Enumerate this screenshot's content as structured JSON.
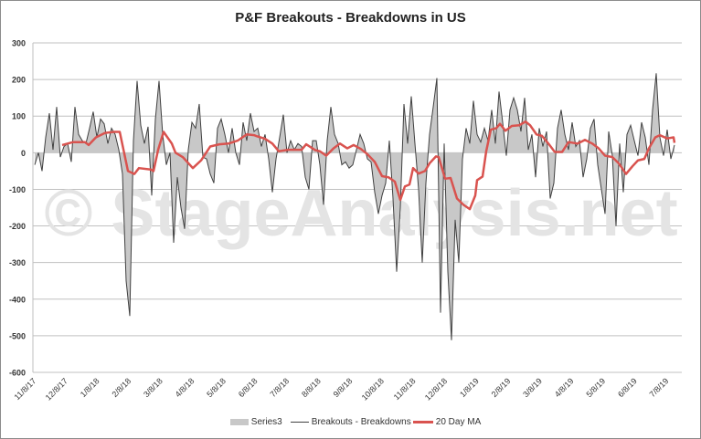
{
  "chart_data": {
    "type": "area",
    "title": "P&F Breakouts - Breakdowns in US",
    "watermark": "© StageAnalysis.net",
    "xlabel": "",
    "ylabel": "",
    "ylim": [
      -600,
      300
    ],
    "yticks": [
      300,
      200,
      100,
      0,
      -100,
      -200,
      -300,
      -400,
      -500,
      -600
    ],
    "y_tick_labels": [
      "300",
      "200",
      "100",
      "0",
      "-100",
      "-200",
      "-300",
      "-400",
      "-500",
      "-600"
    ],
    "x_tick_labels": [
      "11/8/17",
      "12/8/17",
      "1/8/18",
      "2/8/18",
      "3/8/18",
      "4/8/18",
      "5/8/18",
      "6/8/18",
      "7/8/18",
      "8/8/18",
      "9/8/18",
      "10/8/18",
      "11/8/18",
      "12/8/18",
      "1/8/19",
      "2/8/19",
      "3/8/19",
      "4/8/19",
      "5/8/19",
      "6/8/19",
      "7/8/19"
    ],
    "x_tick_positions": [
      0.5,
      9.15,
      17.8,
      26.45,
      35.1,
      43.75,
      52.4,
      61.05,
      69.7,
      78.35,
      87,
      95.65,
      104.3,
      112.95,
      121.6,
      130.25,
      138.9,
      147.55,
      156.2,
      164.85,
      173.5
    ],
    "x_range": [
      0,
      176
    ],
    "grid": "horizontal",
    "legend_position": "bottom",
    "legend": [
      "Series3",
      "Breakouts - Breakdowns",
      "20 Day MA"
    ],
    "colors": {
      "area": "#c8c8c8",
      "line": "#404040",
      "ma": "#d9534f",
      "grid": "#c0c0c0",
      "watermark": "#e4e4e4"
    },
    "series": [
      {
        "name": "Breakouts - Breakdowns",
        "values": [
          -33,
          0,
          -50,
          42,
          108,
          8,
          125,
          -12,
          17,
          25,
          -25,
          125,
          50,
          33,
          25,
          67,
          112,
          42,
          92,
          79,
          25,
          67,
          50,
          8,
          -58,
          -350,
          -446,
          33,
          196,
          75,
          25,
          71,
          -117,
          92,
          196,
          50,
          -33,
          0,
          -246,
          -67,
          -150,
          -208,
          8,
          83,
          67,
          133,
          -12,
          -17,
          -58,
          -83,
          67,
          92,
          50,
          0,
          67,
          0,
          -33,
          83,
          33,
          108,
          58,
          67,
          17,
          50,
          -17,
          -108,
          -17,
          42,
          104,
          0,
          33,
          8,
          25,
          17,
          -67,
          -100,
          33,
          33,
          -33,
          -142,
          33,
          125,
          50,
          25,
          -33,
          -25,
          -42,
          -33,
          8,
          50,
          25,
          -17,
          -25,
          -108,
          -167,
          -117,
          -83,
          33,
          -125,
          -325,
          -150,
          133,
          25,
          154,
          25,
          -100,
          -300,
          -83,
          50,
          125,
          204,
          -437,
          25,
          -325,
          -512,
          -183,
          -300,
          -17,
          67,
          25,
          142,
          50,
          29,
          67,
          33,
          117,
          25,
          167,
          83,
          -8,
          117,
          150,
          117,
          58,
          150,
          8,
          50,
          -67,
          67,
          17,
          58,
          -125,
          -83,
          67,
          117,
          50,
          8,
          83,
          17,
          33,
          -67,
          -17,
          67,
          92,
          -33,
          -100,
          -167,
          58,
          -8,
          -200,
          25,
          -108,
          50,
          75,
          33,
          -8,
          83,
          42,
          -33,
          117,
          217,
          42,
          -8,
          63,
          -17,
          21
        ]
      },
      {
        "name": "20 Day MA",
        "points": [
          [
            7.5,
            21
          ],
          [
            10.5,
            29
          ],
          [
            13.75,
            29
          ],
          [
            14.75,
            21
          ],
          [
            16.75,
            42
          ],
          [
            19.25,
            54
          ],
          [
            21.75,
            57
          ],
          [
            23.25,
            57
          ],
          [
            25.5,
            -50
          ],
          [
            27.25,
            -58
          ],
          [
            28.5,
            -42
          ],
          [
            31.75,
            -46
          ],
          [
            32.5,
            -50
          ],
          [
            33.75,
            8
          ],
          [
            35.25,
            57
          ],
          [
            37.5,
            25
          ],
          [
            38.5,
            0
          ],
          [
            40.5,
            -12
          ],
          [
            43.25,
            -42
          ],
          [
            45.5,
            -21
          ],
          [
            48,
            17
          ],
          [
            50.5,
            23
          ],
          [
            53,
            25
          ],
          [
            55.5,
            33
          ],
          [
            58,
            50
          ],
          [
            60,
            48
          ],
          [
            60.5,
            46
          ],
          [
            63,
            38
          ],
          [
            65,
            25
          ],
          [
            66.75,
            4
          ],
          [
            69.25,
            8
          ],
          [
            73,
            8
          ],
          [
            74.25,
            23
          ],
          [
            76.75,
            7
          ],
          [
            78,
            4
          ],
          [
            79.75,
            -8
          ],
          [
            81.75,
            12
          ],
          [
            83.5,
            25
          ],
          [
            85.5,
            12
          ],
          [
            87.25,
            21
          ],
          [
            89.25,
            10
          ],
          [
            91,
            -4
          ],
          [
            93,
            -25
          ],
          [
            95,
            -64
          ],
          [
            96.75,
            -67
          ],
          [
            98.5,
            -79
          ],
          [
            100,
            -129
          ],
          [
            101.25,
            -92
          ],
          [
            102.5,
            -87
          ],
          [
            103.5,
            -42
          ],
          [
            105,
            -57
          ],
          [
            106.75,
            -50
          ],
          [
            108,
            -29
          ],
          [
            109.75,
            -10
          ],
          [
            110.5,
            -12
          ],
          [
            112.25,
            -71
          ],
          [
            113.75,
            -69
          ],
          [
            115.5,
            -125
          ],
          [
            117.25,
            -142
          ],
          [
            119,
            -154
          ],
          [
            120.5,
            -117
          ],
          [
            121,
            -75
          ],
          [
            122.5,
            -65
          ],
          [
            123.5,
            4
          ],
          [
            124.75,
            63
          ],
          [
            126.25,
            67
          ],
          [
            127.25,
            79
          ],
          [
            128.75,
            60
          ],
          [
            130.5,
            73
          ],
          [
            132.5,
            75
          ],
          [
            134.25,
            85
          ],
          [
            135.5,
            75
          ],
          [
            137.25,
            50
          ],
          [
            138.75,
            46
          ],
          [
            140.5,
            25
          ],
          [
            142.25,
            2
          ],
          [
            144.25,
            2
          ],
          [
            146,
            29
          ],
          [
            148.5,
            25
          ],
          [
            150.5,
            35
          ],
          [
            152.5,
            25
          ],
          [
            154.25,
            12
          ],
          [
            156,
            -8
          ],
          [
            158,
            -12
          ],
          [
            159.75,
            -29
          ],
          [
            161.75,
            -58
          ],
          [
            163.5,
            -37
          ],
          [
            165,
            -21
          ],
          [
            166.75,
            -17
          ],
          [
            168,
            12
          ],
          [
            169.75,
            42
          ],
          [
            171,
            48
          ],
          [
            173,
            39
          ],
          [
            174.75,
            42
          ],
          [
            175,
            27
          ]
        ]
      }
    ]
  }
}
